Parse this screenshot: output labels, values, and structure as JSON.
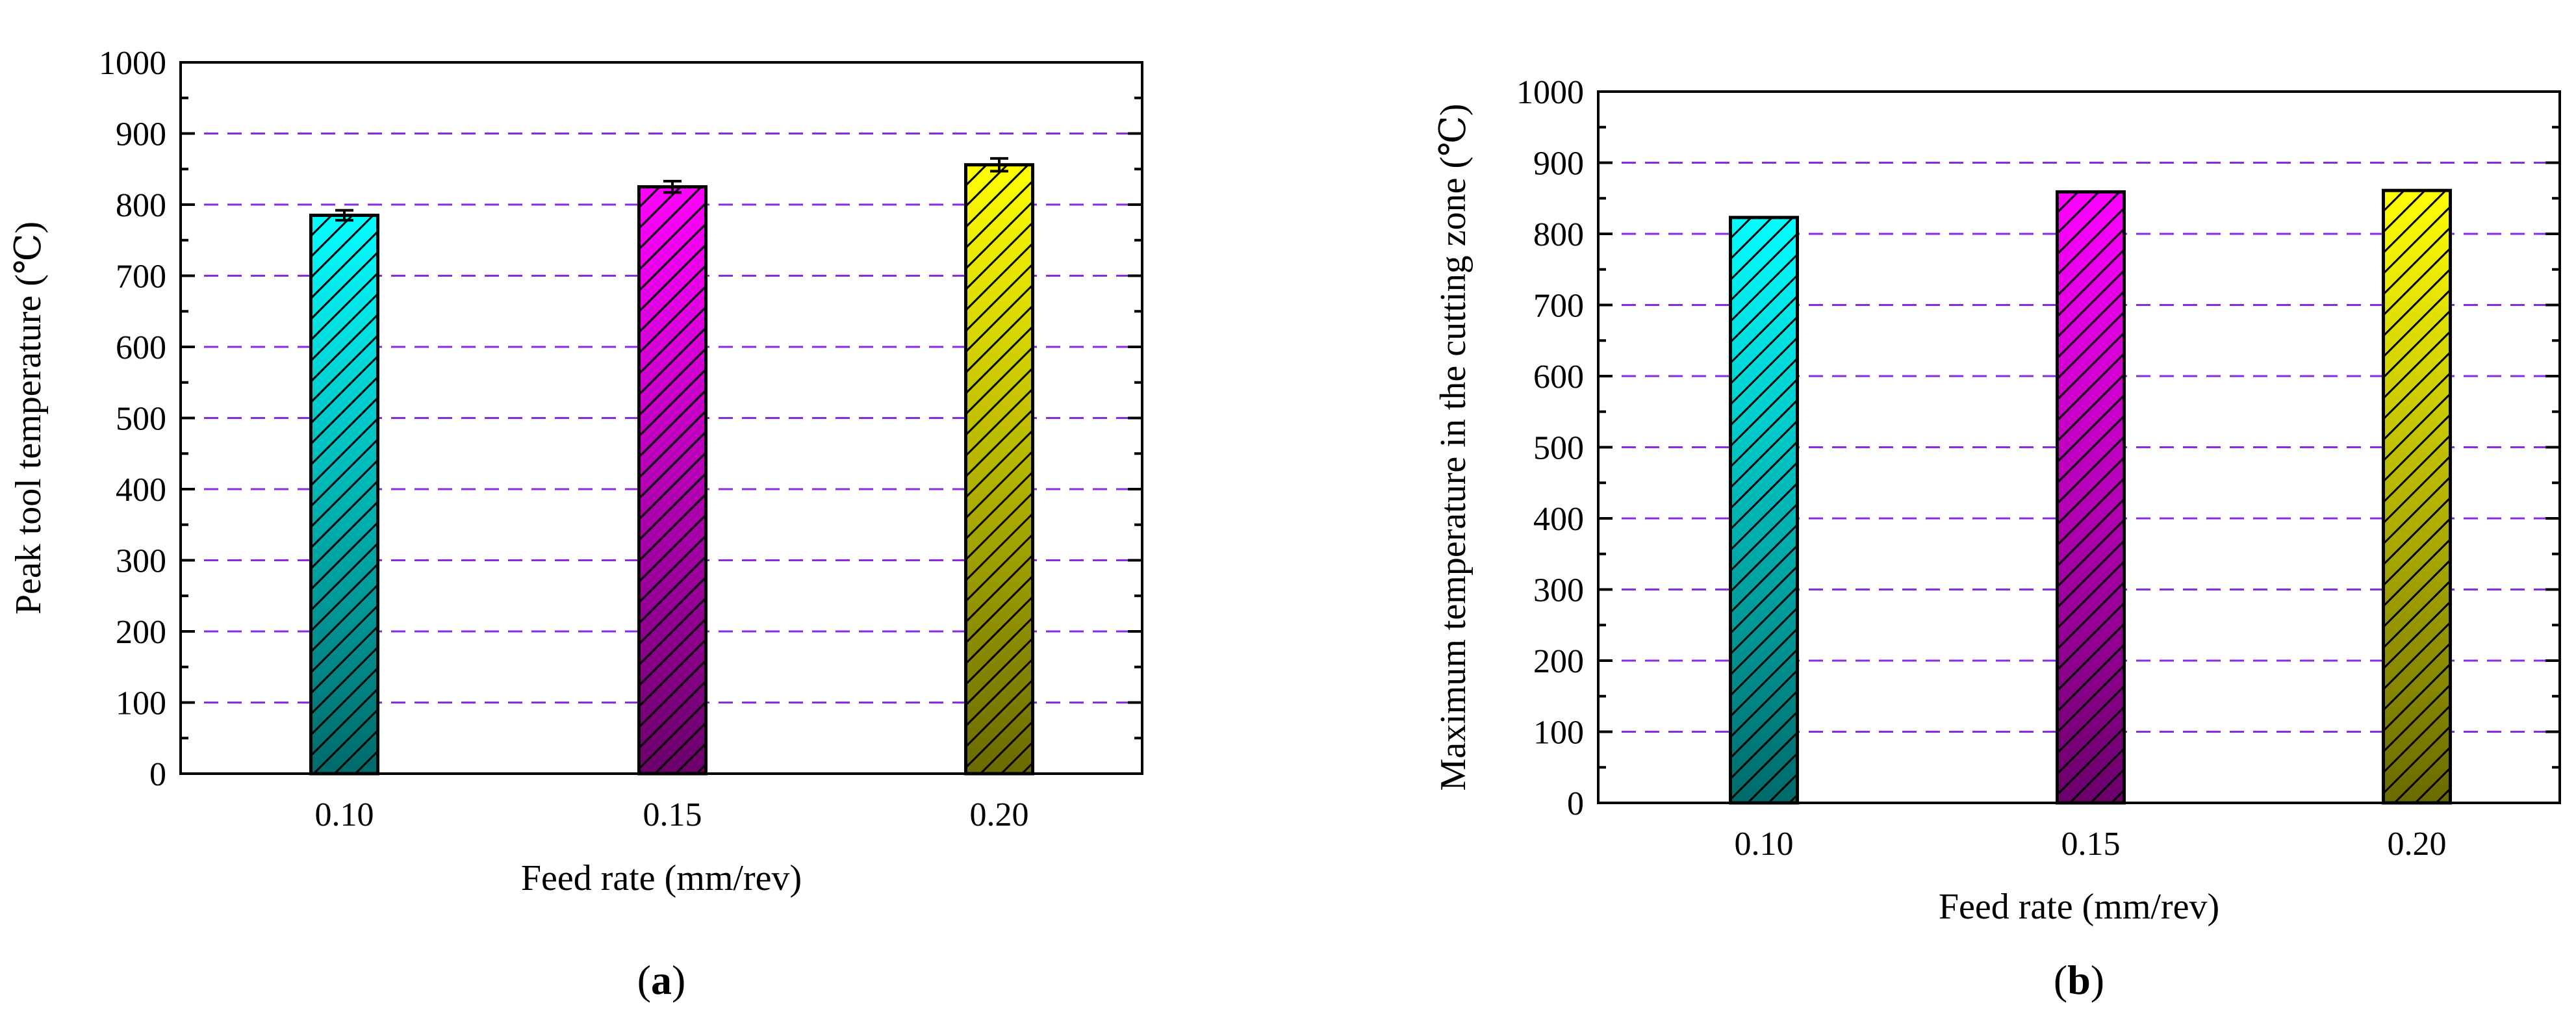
{
  "chart_data": [
    {
      "type": "bar",
      "panel_label": "a",
      "categories": [
        "0.10",
        "0.15",
        "0.20"
      ],
      "values": [
        785,
        825,
        856
      ],
      "error": [
        7,
        8,
        9
      ],
      "xlabel": "Feed rate (mm/rev)",
      "ylabel": "Peak tool temperature (℃)",
      "ylim": [
        0,
        1000
      ],
      "yticks": [
        "0",
        "100",
        "200",
        "300",
        "400",
        "500",
        "600",
        "700",
        "800",
        "900",
        "1000"
      ],
      "grid": "horizontal dashed",
      "colors": [
        "#00ffff",
        "#ff00ff",
        "#ffff00"
      ],
      "dark_colors": [
        "#006a6a",
        "#6a006a",
        "#6a6a00"
      ]
    },
    {
      "type": "bar",
      "panel_label": "b",
      "categories": [
        "0.10",
        "0.15",
        "0.20"
      ],
      "values": [
        823,
        859,
        861
      ],
      "xlabel": "Feed rate (mm/rev)",
      "ylabel": "Maximum temperature in the cutting zone (℃)",
      "ylim": [
        0,
        1000
      ],
      "yticks": [
        "0",
        "100",
        "200",
        "300",
        "400",
        "500",
        "600",
        "700",
        "800",
        "900",
        "1000"
      ],
      "grid": "horizontal dashed",
      "colors": [
        "#00ffff",
        "#ff00ff",
        "#ffff00"
      ],
      "dark_colors": [
        "#006a6a",
        "#6a006a",
        "#6a6a00"
      ]
    }
  ],
  "grid_color": "#8a2be2"
}
